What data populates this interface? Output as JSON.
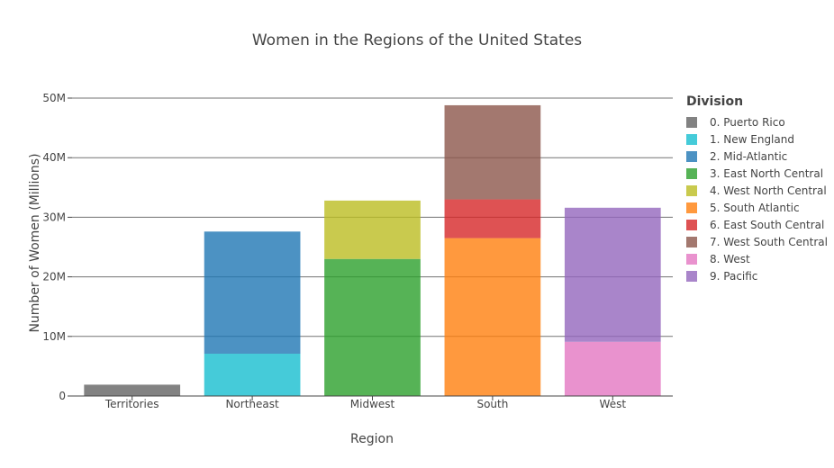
{
  "chart_data": {
    "type": "bar",
    "stacked": true,
    "title": "Women in the Regions of the United States",
    "xlabel": "Region",
    "ylabel": "Number of Women (Millions)",
    "categories": [
      "Territories",
      "Northeast",
      "Midwest",
      "South",
      "West"
    ],
    "ylim": [
      0,
      50000000
    ],
    "yticks": [
      {
        "value": 0,
        "label": "0"
      },
      {
        "value": 10000000,
        "label": "10M"
      },
      {
        "value": 20000000,
        "label": "20M"
      },
      {
        "value": 30000000,
        "label": "30M"
      },
      {
        "value": 40000000,
        "label": "40M"
      },
      {
        "value": 50000000,
        "label": "50M"
      }
    ],
    "grid": true,
    "legend_title": "Division",
    "legend_position": "right",
    "series": [
      {
        "name": "0. Puerto Rico",
        "color": "#636363",
        "values": [
          1900000,
          0,
          0,
          0,
          0
        ]
      },
      {
        "name": "1. New England",
        "color": "#17becf",
        "values": [
          0,
          7100000,
          0,
          0,
          0
        ]
      },
      {
        "name": "2. Mid-Atlantic",
        "color": "#1f77b4",
        "values": [
          0,
          20500000,
          0,
          0,
          0
        ]
      },
      {
        "name": "3. East North Central",
        "color": "#2ca02c",
        "values": [
          0,
          0,
          23000000,
          0,
          0
        ]
      },
      {
        "name": "4. West North Central",
        "color": "#bcbd22",
        "values": [
          0,
          0,
          9800000,
          0,
          0
        ]
      },
      {
        "name": "5. South Atlantic",
        "color": "#ff7f0e",
        "values": [
          0,
          0,
          0,
          26500000,
          0
        ]
      },
      {
        "name": "6. East South Central",
        "color": "#d62728",
        "values": [
          0,
          0,
          0,
          6500000,
          0
        ]
      },
      {
        "name": "7. West South Central",
        "color": "#8c564b",
        "values": [
          0,
          0,
          0,
          15800000,
          0
        ]
      },
      {
        "name": "8. West",
        "color": "#e377c2",
        "values": [
          0,
          0,
          0,
          0,
          9100000
        ]
      },
      {
        "name": "9. Pacific",
        "color": "#9467bd",
        "values": [
          0,
          0,
          0,
          0,
          22500000
        ]
      }
    ]
  }
}
